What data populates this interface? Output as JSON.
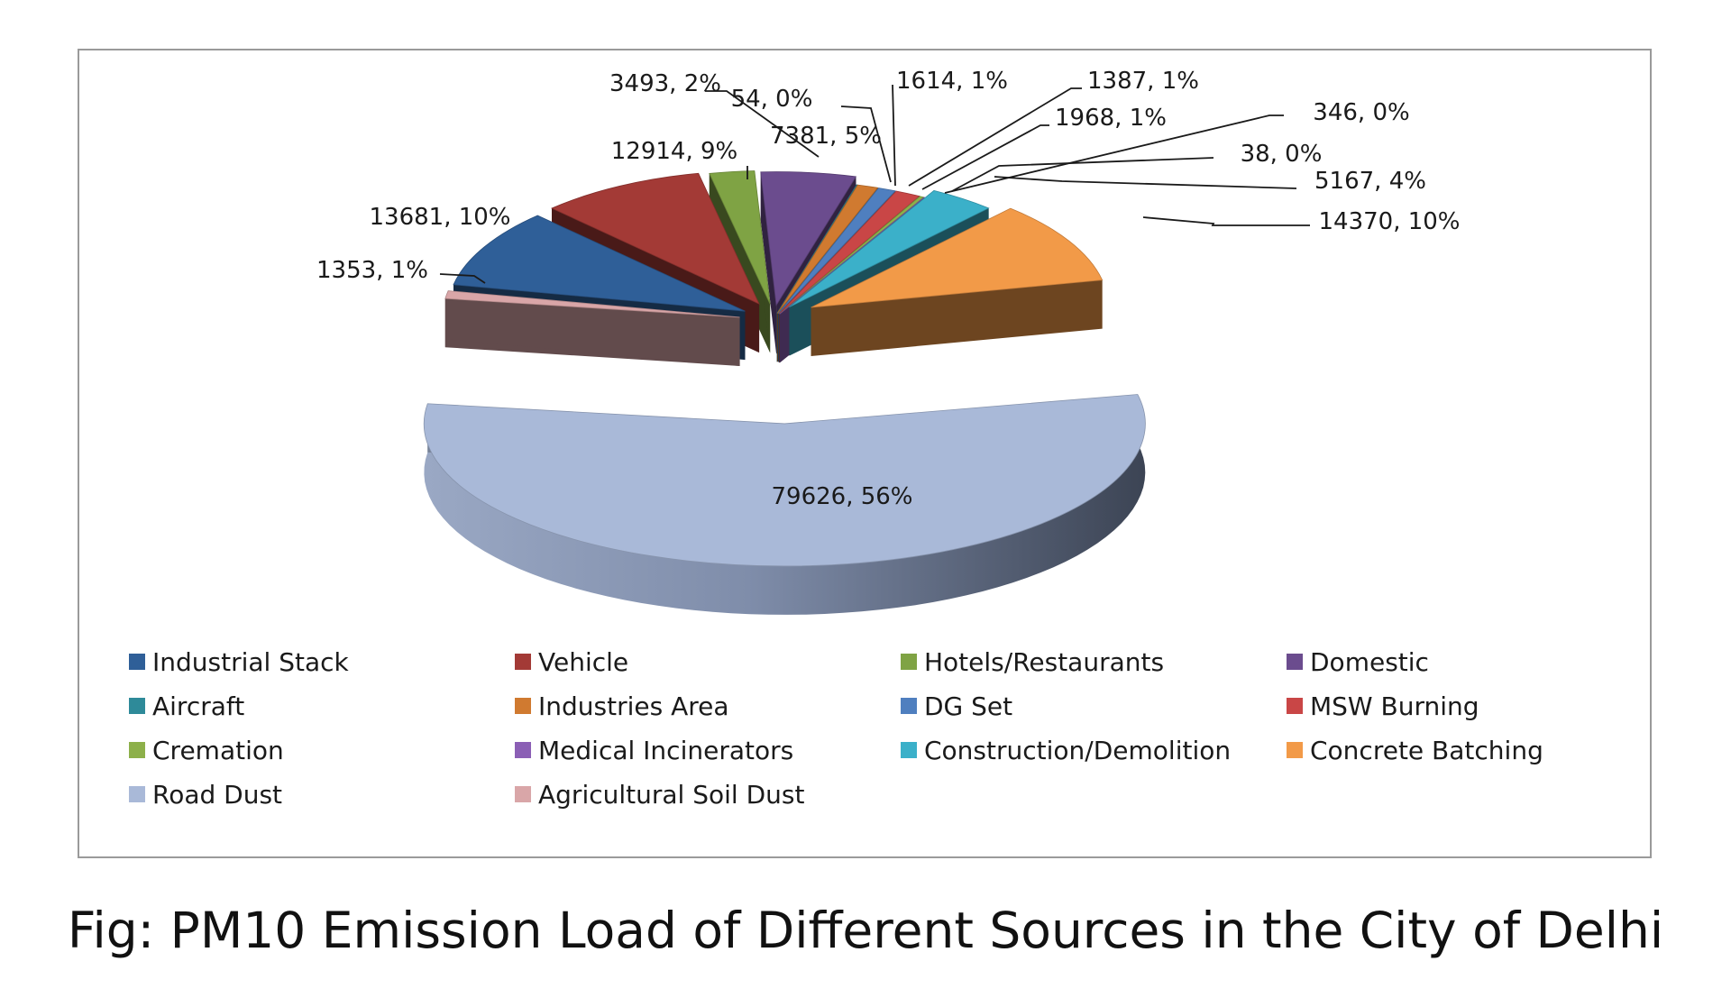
{
  "caption": "Fig: PM10 Emission Load of Different Sources in the City of Delhi",
  "chart_data": {
    "type": "pie",
    "style": "3d-exploded",
    "legend_position": "bottom",
    "slices": [
      {
        "name": "Domestic",
        "value": 7381,
        "percent": "5%",
        "label": "7381, 5%",
        "color": "#6B4C8E"
      },
      {
        "name": "Aircraft",
        "value": 54,
        "percent": "0%",
        "label": "54, 0%",
        "color": "#2E8A99"
      },
      {
        "name": "Industries Area",
        "value": 1614,
        "percent": "1%",
        "label": "1614, 1%",
        "color": "#D07A30"
      },
      {
        "name": "DG Set",
        "value": 1387,
        "percent": "1%",
        "label": "1387, 1%",
        "color": "#4F7FBF"
      },
      {
        "name": "MSW Burning",
        "value": 1968,
        "percent": "1%",
        "label": "1968, 1%",
        "color": "#C94646"
      },
      {
        "name": "Cremation",
        "value": 346,
        "percent": "0%",
        "label": "346, 0%",
        "color": "#8DB04A"
      },
      {
        "name": "Medical Incinerators",
        "value": 38,
        "percent": "0%",
        "label": "38, 0%",
        "color": "#8B5FB5"
      },
      {
        "name": "Construction/Demolition",
        "value": 5167,
        "percent": "4%",
        "label": "5167, 4%",
        "color": "#3BB0C9"
      },
      {
        "name": "Concrete Batching",
        "value": 14370,
        "percent": "10%",
        "label": "14370, 10%",
        "color": "#F29A48"
      },
      {
        "name": "Road Dust",
        "value": 79626,
        "percent": "56%",
        "label": "79626, 56%",
        "color": "#A9B9D8"
      },
      {
        "name": "Agricultural Soil Dust",
        "value": 1353,
        "percent": "1%",
        "label": "1353, 1%",
        "color": "#D9A6A8"
      },
      {
        "name": "Industrial Stack",
        "value": 13681,
        "percent": "10%",
        "label": "13681, 10%",
        "color": "#2F5F98"
      },
      {
        "name": "Vehicle",
        "value": 12914,
        "percent": "9%",
        "label": "12914, 9%",
        "color": "#A33A36"
      },
      {
        "name": "Hotels/Restaurants",
        "value": 3493,
        "percent": "2%",
        "label": "3493, 2%",
        "color": "#7FA344"
      }
    ],
    "legend": [
      {
        "name": "Industrial Stack",
        "color": "#2F5F98"
      },
      {
        "name": "Vehicle",
        "color": "#A33A36"
      },
      {
        "name": "Hotels/Restaurants",
        "color": "#7FA344"
      },
      {
        "name": "Domestic",
        "color": "#6B4C8E"
      },
      {
        "name": "Aircraft",
        "color": "#2E8A99"
      },
      {
        "name": "Industries Area",
        "color": "#D07A30"
      },
      {
        "name": "DG Set",
        "color": "#4F7FBF"
      },
      {
        "name": "MSW Burning",
        "color": "#C94646"
      },
      {
        "name": "Cremation",
        "color": "#8DB04A"
      },
      {
        "name": "Medical Incinerators",
        "color": "#8B5FB5"
      },
      {
        "name": "Construction/Demolition",
        "color": "#3BB0C9"
      },
      {
        "name": "Concrete Batching",
        "color": "#F29A48"
      },
      {
        "name": "Road Dust",
        "color": "#A9B9D8"
      },
      {
        "name": "Agricultural Soil Dust",
        "color": "#D9A6A8"
      }
    ]
  }
}
